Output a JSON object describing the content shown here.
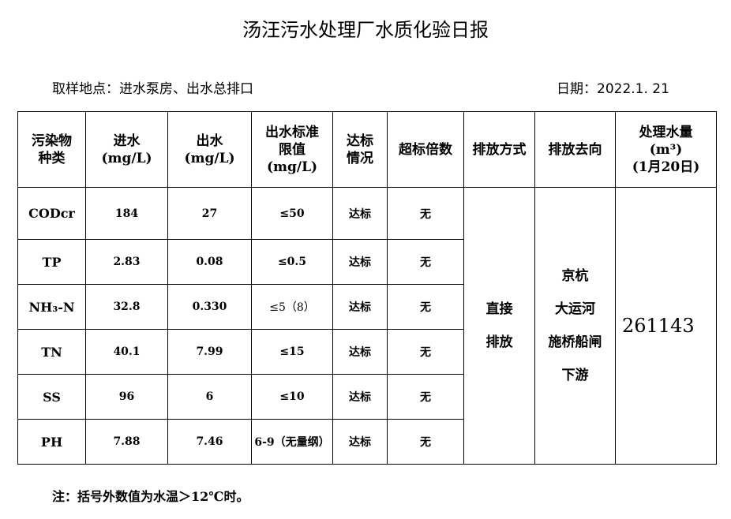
{
  "title": "汤汪污水处理厂水质化验日报",
  "location": "取样地点：进水泵房、出水总排口",
  "date": "日期：2022.1. 21",
  "headers": [
    "污染物\n种类",
    "进水\n(mg/L)",
    "出水\n(mg/L)",
    "出水标准\n限值\n(mg/L)",
    "达标\n情况",
    "超标倍数",
    "排放方式",
    "排放去向",
    "处理水量\n(m³)\n(1月20日)"
  ],
  "rows": [
    {
      "name": "CODcr",
      "in": "184",
      "out": "27",
      "limit": "≤50",
      "status": "达标",
      "exceed": "无"
    },
    {
      "name": "TP",
      "in": "2.83",
      "out": "0.08",
      "limit": "≤0.5",
      "status": "达标",
      "exceed": "无"
    },
    {
      "name": "NH₃-N",
      "in": "32.8",
      "out": "0.330",
      "limit": "≤5（8）",
      "status": "达标",
      "exceed": "无"
    },
    {
      "name": "TN",
      "in": "40.1",
      "out": "7.99",
      "limit": "≤15",
      "status": "达标",
      "exceed": "无"
    },
    {
      "name": "SS",
      "in": "96",
      "out": "6",
      "limit": "≤10",
      "status": "达标",
      "exceed": "无"
    },
    {
      "name": "PH",
      "in": "7.88",
      "out": "7.46",
      "limit": "6-9（无量纲）",
      "status": "达标",
      "exceed": "无"
    }
  ],
  "discharge_method": "直接\n排放",
  "discharge_dest": "京杭\n大运河\n施桥船闸\n下游",
  "volume": "261143",
  "note": "注：括号外数值为水温＞12℃时。"
}
